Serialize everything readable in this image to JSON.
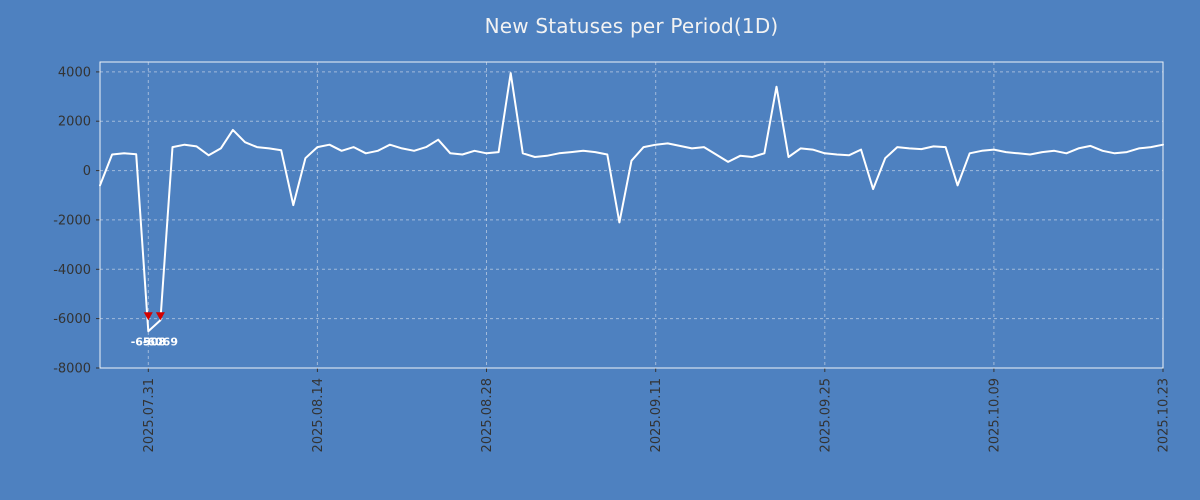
{
  "title": "New Statuses per Period(1D)",
  "colors": {
    "background": "#4e81c0",
    "line": "#ffffff",
    "grid": "#d9e1ec",
    "border": "#eef2f7",
    "tick_label": "#333333",
    "title_text": "#f2f2f2",
    "marker": "#d40000",
    "annotation_text": "#ffffff"
  },
  "chart_data": {
    "type": "line",
    "title": "New Statuses per Period(1D)",
    "xlabel": "",
    "ylabel": "",
    "ylim": [
      -8000,
      4400
    ],
    "grid": true,
    "legend": "none",
    "series_name": "New Statuses",
    "x": [
      "2025-07-27",
      "2025-07-28",
      "2025-07-29",
      "2025-07-30",
      "2025-07-31",
      "2025-08-01",
      "2025-08-02",
      "2025-08-03",
      "2025-08-04",
      "2025-08-05",
      "2025-08-06",
      "2025-08-07",
      "2025-08-08",
      "2025-08-09",
      "2025-08-10",
      "2025-08-11",
      "2025-08-12",
      "2025-08-13",
      "2025-08-14",
      "2025-08-15",
      "2025-08-16",
      "2025-08-17",
      "2025-08-18",
      "2025-08-19",
      "2025-08-20",
      "2025-08-21",
      "2025-08-22",
      "2025-08-23",
      "2025-08-24",
      "2025-08-25",
      "2025-08-26",
      "2025-08-27",
      "2025-08-28",
      "2025-08-29",
      "2025-08-30",
      "2025-08-31",
      "2025-09-01",
      "2025-09-02",
      "2025-09-03",
      "2025-09-04",
      "2025-09-05",
      "2025-09-06",
      "2025-09-07",
      "2025-09-08",
      "2025-09-09",
      "2025-09-10",
      "2025-09-11",
      "2025-09-12",
      "2025-09-13",
      "2025-09-14",
      "2025-09-15",
      "2025-09-16",
      "2025-09-17",
      "2025-09-18",
      "2025-09-19",
      "2025-09-20",
      "2025-09-21",
      "2025-09-22",
      "2025-09-23",
      "2025-09-24",
      "2025-09-25",
      "2025-09-26",
      "2025-09-27",
      "2025-09-28",
      "2025-09-29",
      "2025-09-30",
      "2025-10-01",
      "2025-10-02",
      "2025-10-03",
      "2025-10-04",
      "2025-10-05",
      "2025-10-06",
      "2025-10-07",
      "2025-10-08",
      "2025-10-09",
      "2025-10-10",
      "2025-10-11",
      "2025-10-12",
      "2025-10-13",
      "2025-10-14",
      "2025-10-15",
      "2025-10-16",
      "2025-10-17",
      "2025-10-18",
      "2025-10-19",
      "2025-10-20",
      "2025-10-21",
      "2025-10-22",
      "2025-10-23"
    ],
    "values": [
      -600,
      650,
      700,
      660,
      -6508,
      -6069,
      950,
      1050,
      980,
      620,
      900,
      1650,
      1150,
      950,
      900,
      820,
      -1400,
      500,
      950,
      1050,
      800,
      950,
      700,
      800,
      1050,
      900,
      800,
      950,
      1250,
      700,
      650,
      800,
      700,
      750,
      3950,
      700,
      550,
      600,
      700,
      750,
      800,
      750,
      650,
      -2100,
      400,
      950,
      1050,
      1100,
      1000,
      900,
      950,
      650,
      350,
      600,
      550,
      700,
      3400,
      550,
      900,
      850,
      700,
      650,
      620,
      850,
      -750,
      500,
      950,
      900,
      870,
      980,
      950,
      -600,
      700,
      800,
      850,
      750,
      700,
      650,
      750,
      800,
      700,
      900,
      1000,
      800,
      700,
      750,
      900,
      950,
      1050
    ],
    "y_ticks": [
      {
        "label": "4000",
        "value": 4000
      },
      {
        "label": "2000",
        "value": 2000
      },
      {
        "label": "0",
        "value": 0
      },
      {
        "label": "-2000",
        "value": -2000
      },
      {
        "label": "-4000",
        "value": -4000
      },
      {
        "label": "-6000",
        "value": -6000
      },
      {
        "label": "-8000",
        "value": -8000
      }
    ],
    "x_ticks": [
      {
        "label": "2025.07.31",
        "date": "2025-07-31"
      },
      {
        "label": "2025.08.14",
        "date": "2025-08-14"
      },
      {
        "label": "2025.08.28",
        "date": "2025-08-28"
      },
      {
        "label": "2025.09.11",
        "date": "2025-09-11"
      },
      {
        "label": "2025.09.25",
        "date": "2025-09-25"
      },
      {
        "label": "2025.10.09",
        "date": "2025-10-09"
      },
      {
        "label": "2025.10.23",
        "date": "2025-10-23"
      }
    ],
    "annotations": [
      {
        "date": "2025-07-31",
        "value": -6508,
        "label": "-6508",
        "marker": "red-down-arrow-icon"
      },
      {
        "date": "2025-08-01",
        "value": -6069,
        "label": "-6069",
        "marker": "red-down-arrow-icon"
      }
    ]
  }
}
